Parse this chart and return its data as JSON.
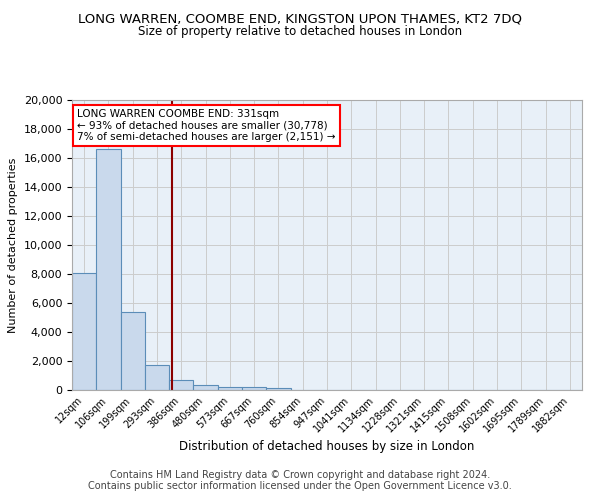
{
  "title_line1": "LONG WARREN, COOMBE END, KINGSTON UPON THAMES, KT2 7DQ",
  "title_line2": "Size of property relative to detached houses in London",
  "xlabel": "Distribution of detached houses by size in London",
  "ylabel": "Number of detached properties",
  "bin_labels": [
    "12sqm",
    "106sqm",
    "199sqm",
    "293sqm",
    "386sqm",
    "480sqm",
    "573sqm",
    "667sqm",
    "760sqm",
    "854sqm",
    "947sqm",
    "1041sqm",
    "1134sqm",
    "1228sqm",
    "1321sqm",
    "1415sqm",
    "1508sqm",
    "1602sqm",
    "1695sqm",
    "1789sqm",
    "1882sqm"
  ],
  "bar_heights": [
    8050,
    16600,
    5350,
    1750,
    700,
    370,
    230,
    180,
    150,
    0,
    0,
    0,
    0,
    0,
    0,
    0,
    0,
    0,
    0,
    0,
    0
  ],
  "bar_color": "#c9d9ec",
  "bar_edge_color": "#5b8db8",
  "red_line_x": 3.62,
  "annotation_text": "LONG WARREN COOMBE END: 331sqm\n← 93% of detached houses are smaller (30,778)\n7% of semi-detached houses are larger (2,151) →",
  "annotation_box_color": "white",
  "annotation_box_edge_color": "red",
  "ylim": [
    0,
    20000
  ],
  "yticks": [
    0,
    2000,
    4000,
    6000,
    8000,
    10000,
    12000,
    14000,
    16000,
    18000,
    20000
  ],
  "grid_color": "#cccccc",
  "bg_color": "#e8f0f8",
  "footnote1": "Contains HM Land Registry data © Crown copyright and database right 2024.",
  "footnote2": "Contains public sector information licensed under the Open Government Licence v3.0.",
  "red_line_color": "#8b0000",
  "footnote_fontsize": 7.0,
  "title1_fontsize": 9.5,
  "title2_fontsize": 8.5,
  "annotation_fontsize": 7.5,
  "xlabel_fontsize": 8.5,
  "ylabel_fontsize": 8.0,
  "xtick_fontsize": 7.0,
  "ytick_fontsize": 8.0
}
